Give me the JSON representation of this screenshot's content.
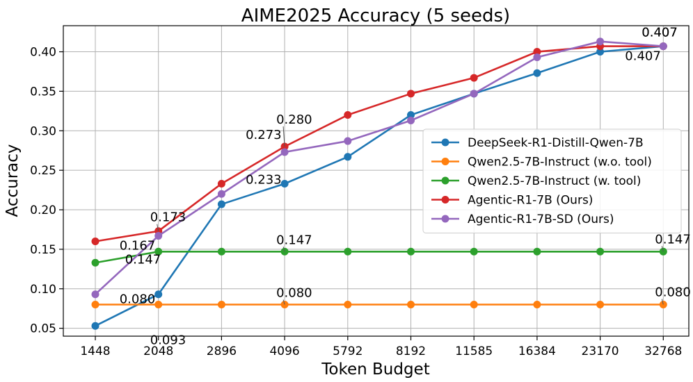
{
  "chart_data": {
    "type": "line",
    "title": "AIME2025 Accuracy (5 seeds)",
    "xlabel": "Token Budget",
    "ylabel": "Accuracy",
    "categories": [
      "1448",
      "2048",
      "2896",
      "4096",
      "5792",
      "8192",
      "11585",
      "16384",
      "23170",
      "32768"
    ],
    "ylim": [
      0.04,
      0.433
    ],
    "yticks": [
      0.05,
      0.1,
      0.15,
      0.2,
      0.25,
      0.3,
      0.35,
      0.4
    ],
    "ytick_labels": [
      "0.05",
      "0.10",
      "0.15",
      "0.20",
      "0.25",
      "0.30",
      "0.35",
      "0.40"
    ],
    "grid": true,
    "legend_position": "center-right",
    "series": [
      {
        "name": "DeepSeek-R1-Distill-Qwen-7B",
        "color": "#1f77b4",
        "values": [
          0.053,
          0.093,
          0.207,
          0.233,
          0.267,
          0.32,
          0.347,
          0.373,
          0.4,
          0.407
        ]
      },
      {
        "name": "Qwen2.5-7B-Instruct (w.o. tool)",
        "color": "#ff7f0e",
        "values": [
          0.08,
          0.08,
          0.08,
          0.08,
          0.08,
          0.08,
          0.08,
          0.08,
          0.08,
          0.08
        ]
      },
      {
        "name": "Qwen2.5-7B-Instruct (w. tool)",
        "color": "#2ca02c",
        "values": [
          0.133,
          0.147,
          0.147,
          0.147,
          0.147,
          0.147,
          0.147,
          0.147,
          0.147,
          0.147
        ]
      },
      {
        "name": "Agentic-R1-7B (Ours)",
        "color": "#d62728",
        "values": [
          0.16,
          0.173,
          0.233,
          0.28,
          0.32,
          0.347,
          0.367,
          0.4,
          0.407,
          0.407
        ]
      },
      {
        "name": "Agentic-R1-7B-SD (Ours)",
        "color": "#9467bd",
        "values": [
          0.093,
          0.167,
          0.22,
          0.273,
          0.287,
          0.313,
          0.347,
          0.393,
          0.413,
          0.407
        ]
      }
    ],
    "annotations": [
      {
        "text": "0.080",
        "series": 1,
        "index": 1
      },
      {
        "text": "0.093",
        "series": 0,
        "index": 1
      },
      {
        "text": "0.147",
        "series": 2,
        "index": 1
      },
      {
        "text": "0.167",
        "series": 4,
        "index": 1
      },
      {
        "text": "0.173",
        "series": 3,
        "index": 1
      },
      {
        "text": "0.080",
        "series": 1,
        "index": 3
      },
      {
        "text": "0.147",
        "series": 2,
        "index": 3
      },
      {
        "text": "0.233",
        "series": 0,
        "index": 3
      },
      {
        "text": "0.273",
        "series": 4,
        "index": 3
      },
      {
        "text": "0.280",
        "series": 3,
        "index": 3
      },
      {
        "text": "0.080",
        "series": 1,
        "index": 9
      },
      {
        "text": "0.147",
        "series": 2,
        "index": 9
      },
      {
        "text": "0.407",
        "series": 0,
        "index": 9
      },
      {
        "text": "0.407",
        "series": 3,
        "index": 9
      },
      {
        "text": "0.407",
        "series": 4,
        "index": 9
      }
    ]
  }
}
